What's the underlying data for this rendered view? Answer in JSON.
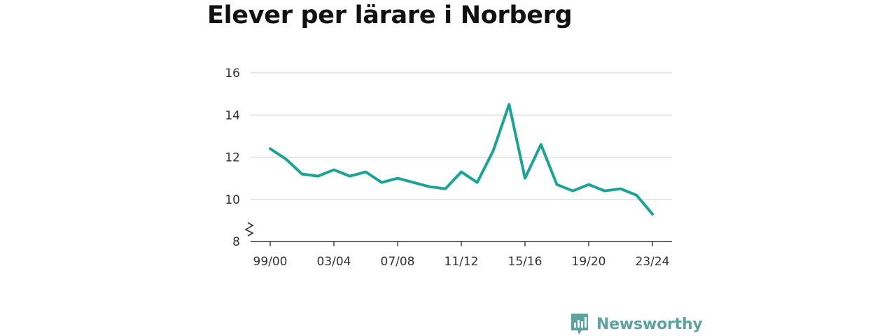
{
  "brand": {
    "name": "Newsworthy",
    "color": "#5da3a0"
  },
  "chart_data": {
    "type": "line",
    "title": "Elever per lärare i Norberg",
    "xlabel": "",
    "ylabel": "",
    "x": [
      "99/00",
      "00/01",
      "01/02",
      "02/03",
      "03/04",
      "04/05",
      "05/06",
      "06/07",
      "07/08",
      "08/09",
      "09/10",
      "10/11",
      "11/12",
      "12/13",
      "13/14",
      "14/15",
      "15/16",
      "16/17",
      "17/18",
      "18/19",
      "19/20",
      "20/21",
      "21/22",
      "22/23",
      "23/24"
    ],
    "x_ticks": [
      "99/00",
      "03/04",
      "07/08",
      "11/12",
      "15/16",
      "19/20",
      "23/24"
    ],
    "y_ticks": [
      8,
      10,
      12,
      14,
      16
    ],
    "ylim": [
      8,
      16
    ],
    "axis_break": true,
    "grid": true,
    "line_color": "#1ba398",
    "series": [
      {
        "values": [
          12.4,
          11.9,
          11.2,
          11.1,
          11.4,
          11.1,
          11.3,
          10.8,
          11.0,
          10.8,
          10.6,
          10.5,
          11.3,
          10.8,
          12.3,
          14.5,
          11.0,
          12.6,
          10.7,
          10.4,
          10.7,
          10.4,
          10.5,
          10.2,
          9.3
        ]
      }
    ]
  }
}
